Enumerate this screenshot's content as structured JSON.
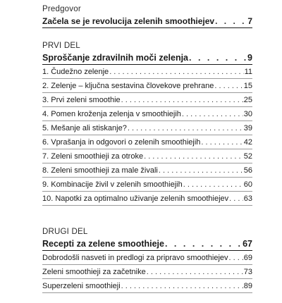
{
  "preface": {
    "label": "Predgovor",
    "title": "Začela se je revolucija zelenih smoothiejev",
    "page": "7"
  },
  "part1": {
    "label": "PRVI DEL",
    "title": "Sproščanje zdravilnih moči zelenja",
    "page": "9",
    "chapters": [
      {
        "title": "1. Čudežno zelenje",
        "page": "11"
      },
      {
        "title": "2. Zelenje – ključna sestavina človekove prehrane",
        "page": "15"
      },
      {
        "title": "3. Prvi zeleni smoothie",
        "page": "25"
      },
      {
        "title": "4. Pomen kroženja zelenja v smoothiejih",
        "page": "30"
      },
      {
        "title": "5. Mešanje ali stiskanje?",
        "page": "39"
      },
      {
        "title": "6. Vprašanja in odgovori o zelenih smoothiejih",
        "page": "42"
      },
      {
        "title": "7. Zeleni smoothieji za otroke",
        "page": "52"
      },
      {
        "title": "8. Zeleni smoothieji za male živali",
        "page": "56"
      },
      {
        "title": "9. Kombinacije živil v zelenih smoothiejih",
        "page": "60"
      },
      {
        "title": "10. Napotki za optimalno uživanje zelenih smoothiejev",
        "page": "63"
      }
    ]
  },
  "part2": {
    "label": "DRUGI DEL",
    "title": "Recepti za zelene smoothieje",
    "page": "67",
    "chapters": [
      {
        "title": "Dobrodošli nasveti in predlogi za pripravo smoothiejev",
        "page": "69"
      },
      {
        "title": "Zeleni smoothieji za začetnike",
        "page": "73"
      },
      {
        "title": "Superzeleni smoothieji",
        "page": "89"
      }
    ]
  }
}
